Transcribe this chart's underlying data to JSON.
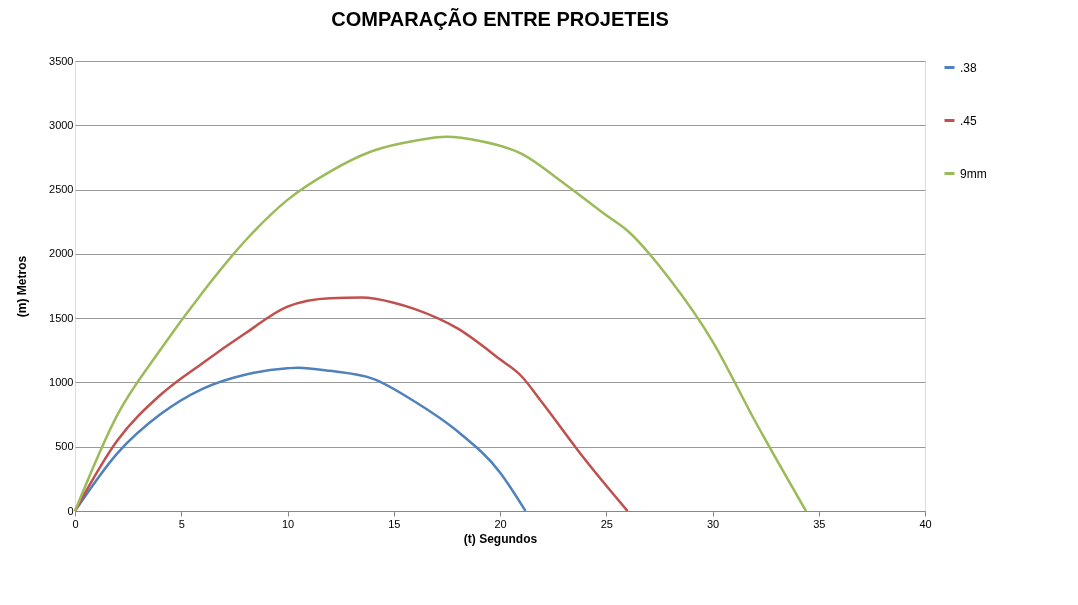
{
  "chart_data": {
    "type": "line",
    "title": "COMPARAÇÃO ENTRE PROJETEIS",
    "xlabel": "(t)  Segundos",
    "ylabel": "(m) Metros",
    "xlim": [
      0,
      40
    ],
    "xticks": [
      0,
      5,
      10,
      15,
      20,
      25,
      30,
      35,
      40
    ],
    "ylim": [
      0,
      3500
    ],
    "yticks": [
      0,
      500,
      1000,
      1500,
      2000,
      2500,
      3000,
      3500
    ],
    "grid": "y",
    "legend": "right",
    "marker": "none",
    "line_style": "solid",
    "series": [
      {
        "name": ".38",
        "color": "#4f81bd",
        "x": [
          0,
          2,
          4,
          6,
          8,
          10,
          10.5,
          12,
          14,
          16,
          18,
          20,
          21.2
        ],
        "values": [
          0,
          450,
          750,
          950,
          1060,
          1110,
          1115,
          1090,
          1030,
          850,
          620,
          300,
          0
        ]
      },
      {
        "name": ".45",
        "color": "#c0504d",
        "x": [
          0,
          2,
          4,
          6,
          8,
          10,
          12,
          13.5,
          15,
          16,
          18,
          20,
          21,
          22,
          24,
          26
        ],
        "values": [
          0,
          550,
          900,
          1150,
          1380,
          1590,
          1655,
          1660,
          1620,
          1570,
          1420,
          1180,
          1050,
          840,
          400,
          0
        ]
      },
      {
        "name": "9mm",
        "color": "#9bbb59",
        "x": [
          0,
          2,
          4,
          6,
          8,
          10,
          12,
          14,
          16,
          17.5,
          19,
          21,
          23,
          25,
          26,
          28,
          30,
          32,
          34.4
        ],
        "values": [
          0,
          750,
          1250,
          1700,
          2100,
          2420,
          2640,
          2800,
          2880,
          2910,
          2880,
          2780,
          2550,
          2300,
          2180,
          1800,
          1320,
          700,
          0
        ]
      }
    ]
  }
}
